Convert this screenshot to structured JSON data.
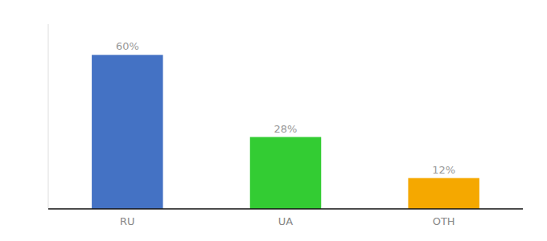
{
  "chart_data": {
    "type": "bar",
    "categories": [
      "RU",
      "UA",
      "OTH"
    ],
    "values": [
      60,
      28,
      12
    ],
    "value_labels": [
      "60%",
      "28%",
      "12%"
    ],
    "colors": [
      "#4472c4",
      "#33cc33",
      "#f5a800"
    ],
    "ylim": [
      0,
      72
    ],
    "data_labels": true,
    "tick_labels": "x"
  }
}
